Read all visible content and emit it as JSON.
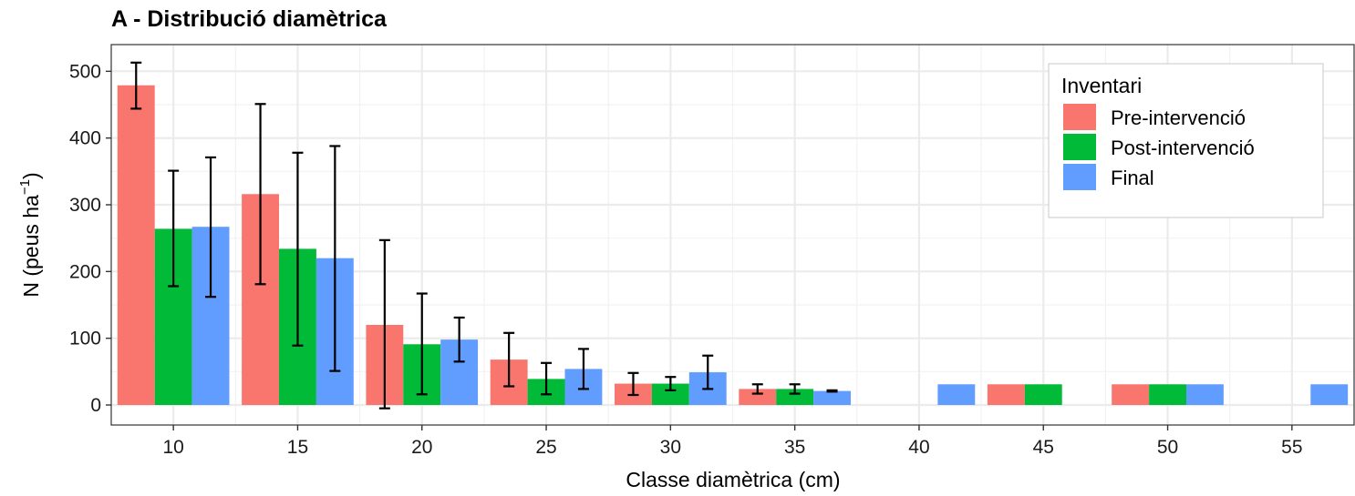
{
  "chart_data": {
    "type": "bar",
    "title": "A - Distribució diamètrica",
    "xlabel": "Classe diamètrica (cm)",
    "ylabel": "N (peus ha",
    "ylabel_sup": "−1",
    "ylabel_close": ")",
    "xlim": [
      7.5,
      57.5
    ],
    "ylim": [
      -30,
      540
    ],
    "x_ticks": [
      10,
      15,
      20,
      25,
      30,
      35,
      40,
      45,
      50,
      55
    ],
    "y_ticks": [
      0,
      100,
      200,
      300,
      400,
      500
    ],
    "grid": true,
    "legend": {
      "title": "Inventari",
      "position": "top-right"
    },
    "series": [
      {
        "name": "Pre-intervenció",
        "color": "#F8766D",
        "offset": -1.5,
        "points": [
          {
            "x": 10,
            "y": 479,
            "err_low": 444,
            "err_high": 513
          },
          {
            "x": 15,
            "y": 316,
            "err_low": 181,
            "err_high": 451
          },
          {
            "x": 20,
            "y": 120,
            "err_low": -5,
            "err_high": 247
          },
          {
            "x": 25,
            "y": 68,
            "err_low": 28,
            "err_high": 108
          },
          {
            "x": 30,
            "y": 32,
            "err_low": 15,
            "err_high": 48
          },
          {
            "x": 35,
            "y": 24,
            "err_low": 17,
            "err_high": 31
          },
          {
            "x": 45,
            "y": 31
          },
          {
            "x": 50,
            "y": 31
          }
        ]
      },
      {
        "name": "Post-intervenció",
        "color": "#00BA38",
        "offset": 0,
        "points": [
          {
            "x": 10,
            "y": 264,
            "err_low": 178,
            "err_high": 351
          },
          {
            "x": 15,
            "y": 234,
            "err_low": 89,
            "err_high": 378
          },
          {
            "x": 20,
            "y": 91,
            "err_low": 16,
            "err_high": 167
          },
          {
            "x": 25,
            "y": 39,
            "err_low": 16,
            "err_high": 63
          },
          {
            "x": 30,
            "y": 32,
            "err_low": 22,
            "err_high": 42
          },
          {
            "x": 35,
            "y": 24,
            "err_low": 17,
            "err_high": 31
          },
          {
            "x": 45,
            "y": 31
          },
          {
            "x": 50,
            "y": 31
          }
        ]
      },
      {
        "name": "Final",
        "color": "#619CFF",
        "offset": 1.5,
        "points": [
          {
            "x": 10,
            "y": 267,
            "err_low": 162,
            "err_high": 371
          },
          {
            "x": 15,
            "y": 220,
            "err_low": 51,
            "err_high": 388
          },
          {
            "x": 20,
            "y": 98,
            "err_low": 65,
            "err_high": 131
          },
          {
            "x": 25,
            "y": 54,
            "err_low": 24,
            "err_high": 84
          },
          {
            "x": 30,
            "y": 49,
            "err_low": 24,
            "err_high": 74
          },
          {
            "x": 35,
            "y": 21,
            "err_low": 20,
            "err_high": 22
          },
          {
            "x": 40,
            "y": 31
          },
          {
            "x": 50,
            "y": 31
          },
          {
            "x": 55,
            "y": 31
          }
        ]
      }
    ]
  }
}
